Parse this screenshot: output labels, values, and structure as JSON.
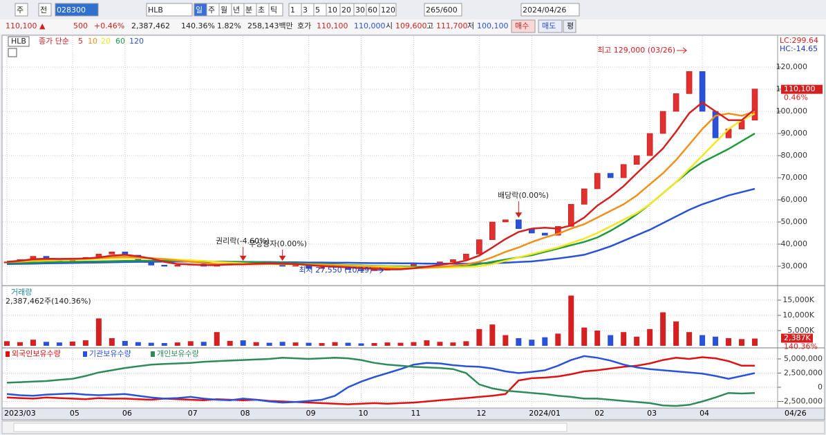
{
  "toolbar": {
    "row1": [
      "주",
      "전",
      "028300",
      "HLB",
      "일",
      "주",
      "월",
      "년",
      "분",
      "초",
      "틱",
      "1",
      "3",
      "5",
      "10",
      "20",
      "30",
      "60",
      "120",
      "265/600",
      "2024/04/26"
    ],
    "row2": [
      "110,100 ▲",
      "500",
      "+0.46%",
      "2,387,462",
      "140.36%",
      "1.82%",
      "258,143백만",
      "호가",
      "110,100",
      "110,000",
      "시",
      "109,600",
      "고",
      "111,700",
      "저",
      "100,100",
      "매수",
      "매도",
      "평"
    ]
  },
  "chart_data": [
    {
      "type": "candlestick",
      "title": "HLB",
      "subtitle": "종가 단순",
      "categories": [
        "2023/03",
        null,
        null,
        null,
        null,
        "05",
        null,
        null,
        null,
        "06",
        null,
        null,
        null,
        null,
        "07",
        null,
        null,
        null,
        "08",
        null,
        null,
        null,
        null,
        "09",
        null,
        null,
        null,
        "10",
        null,
        null,
        null,
        "11",
        null,
        null,
        null,
        null,
        "12",
        null,
        null,
        null,
        "2024/01",
        null,
        null,
        null,
        null,
        "02",
        null,
        null,
        null,
        "03",
        null,
        null,
        null,
        "04",
        null,
        null,
        null,
        null
      ],
      "last_date_label": "04/26",
      "open": [
        31500,
        32000,
        33000,
        34500,
        33500,
        32500,
        33000,
        34000,
        35500,
        36500,
        35000,
        32000,
        30500,
        30000,
        30500,
        31000,
        30000,
        30500,
        31500,
        31000,
        32000,
        31500,
        30000,
        30500,
        29000,
        29500,
        30000,
        28500,
        28000,
        28500,
        28500,
        29500,
        31000,
        31500,
        32000,
        33000,
        35500,
        42000,
        50000,
        51000,
        47000,
        45000,
        44000,
        48000,
        58000,
        65000,
        72000,
        70000,
        76000,
        80000,
        90000,
        100000,
        108000,
        118000,
        100000,
        88000,
        92000,
        96000
      ],
      "close": [
        32000,
        33000,
        34500,
        33500,
        32500,
        33000,
        34000,
        35500,
        36500,
        35000,
        32000,
        30500,
        30000,
        30500,
        31000,
        30000,
        30500,
        31500,
        31000,
        32000,
        31500,
        30000,
        30500,
        29000,
        29500,
        30000,
        28500,
        28000,
        28500,
        28500,
        29500,
        31000,
        31500,
        32000,
        33000,
        35500,
        42000,
        50000,
        51000,
        47000,
        45000,
        44000,
        48000,
        58000,
        65000,
        72000,
        70000,
        76000,
        80000,
        90000,
        100000,
        108000,
        118000,
        100000,
        88000,
        92000,
        96000,
        110100
      ],
      "series": [
        {
          "name": "5",
          "color": "#d42020",
          "values": [
            32000,
            32500,
            33200,
            33400,
            33300,
            33400,
            33500,
            34000,
            34800,
            35200,
            34500,
            33500,
            32000,
            31000,
            30800,
            30500,
            30500,
            30800,
            30900,
            31200,
            31300,
            31200,
            31000,
            30500,
            30100,
            29800,
            29500,
            29100,
            28900,
            28600,
            28600,
            29100,
            29800,
            30600,
            31400,
            32600,
            34800,
            38500,
            42300,
            45500,
            47000,
            47400,
            47000,
            48400,
            52000,
            57400,
            61400,
            66200,
            72000,
            77600,
            83200,
            90800,
            99200,
            104000,
            100000,
            96000,
            96000,
            101000
          ]
        },
        {
          "name": "10",
          "color": "#f0901a",
          "values": [
            32000,
            32300,
            32800,
            33000,
            33100,
            33200,
            33400,
            33700,
            34100,
            34300,
            34000,
            33700,
            33200,
            32600,
            32000,
            31500,
            31000,
            30800,
            30800,
            30900,
            31000,
            31000,
            31000,
            30700,
            30500,
            30400,
            30100,
            29800,
            29500,
            29200,
            29000,
            29100,
            29300,
            29700,
            30200,
            30900,
            32000,
            34100,
            36500,
            38500,
            40900,
            43000,
            44700,
            47000,
            49000,
            52000,
            55000,
            58000,
            62000,
            67000,
            72000,
            78000,
            85000,
            92000,
            98000,
            99000,
            98000,
            100000
          ]
        },
        {
          "name": "20",
          "color": "#f5e620",
          "values": [
            32000,
            32100,
            32400,
            32600,
            32800,
            33000,
            33100,
            33300,
            33500,
            33600,
            33600,
            33500,
            33300,
            33000,
            32700,
            32400,
            32000,
            31600,
            31300,
            31100,
            31000,
            30900,
            30900,
            30800,
            30700,
            30600,
            30400,
            30200,
            30000,
            29800,
            29600,
            29400,
            29300,
            29400,
            29500,
            29700,
            30000,
            31000,
            32500,
            34000,
            35500,
            37000,
            38500,
            40500,
            42500,
            45000,
            48000,
            51000,
            54000,
            58000,
            63000,
            68000,
            74000,
            80000,
            86000,
            92000,
            96000,
            99000
          ]
        },
        {
          "name": "60",
          "color": "#1e9a3c",
          "values": [
            31500,
            31600,
            31700,
            31800,
            31900,
            32000,
            32100,
            32200,
            32300,
            32400,
            32500,
            32500,
            32500,
            32400,
            32300,
            32200,
            32100,
            32000,
            31900,
            31800,
            31700,
            31600,
            31400,
            31200,
            31000,
            30800,
            30600,
            30400,
            30200,
            30000,
            29900,
            29800,
            29800,
            29800,
            29900,
            30000,
            31000,
            32000,
            33000,
            34000,
            35000,
            36500,
            38000,
            39500,
            41000,
            43000,
            46000,
            49500,
            53500,
            58000,
            63000,
            68000,
            73000,
            77000,
            80000,
            83000,
            86500,
            90000
          ]
        },
        {
          "name": "120",
          "color": "#2a52d8",
          "values": [
            31000,
            31100,
            31200,
            31300,
            31400,
            31500,
            31600,
            31700,
            31800,
            31900,
            32000,
            32000,
            32100,
            32100,
            32100,
            32100,
            32100,
            32000,
            32000,
            31900,
            31900,
            31800,
            31800,
            31700,
            31700,
            31600,
            31600,
            31500,
            31400,
            31400,
            31300,
            31300,
            31200,
            31200,
            31200,
            31200,
            31300,
            31400,
            31600,
            31900,
            32200,
            32800,
            33500,
            34300,
            35200,
            37000,
            39000,
            41500,
            44000,
            46500,
            49500,
            52500,
            55500,
            58000,
            60000,
            62000,
            63500,
            65000
          ]
        }
      ],
      "ylim": [
        21560,
        134060
      ],
      "yticks": [
        {
          "value": 30000,
          "label": "30,000"
        },
        {
          "value": 40000,
          "label": "40,000"
        },
        {
          "value": 50000,
          "label": "50,000"
        },
        {
          "value": 60000,
          "label": "60,000"
        },
        {
          "value": 70000,
          "label": "70,000"
        },
        {
          "value": 80000,
          "label": "80,000"
        },
        {
          "value": 90000,
          "label": "90,000"
        },
        {
          "value": 100000,
          "label": "100,000"
        },
        {
          "value": 110000,
          "label": "110,000"
        },
        {
          "value": 120000,
          "label": "120,000"
        }
      ],
      "annotations": {
        "high": "최고 129,000 (03/26)",
        "low": "최저 27,550 (10/19)",
        "events": [
          "권리락(-4.60%)",
          "무상증자(0.00%)",
          "배당락(0.00%)"
        ]
      },
      "right_labels": {
        "lc": "LC:299.64",
        "hc": "HC:-14.65",
        "price": "110,100",
        "change": "0.46%"
      }
    },
    {
      "type": "bar",
      "title": "거래량",
      "subtitle": "2,387,462주(140.36%)",
      "values": [
        1500,
        1200,
        2000,
        1300,
        1100,
        1400,
        1800,
        9000,
        2500,
        1600,
        1200,
        1000,
        900,
        1100,
        1500,
        1300,
        4500,
        1600,
        1800,
        1200,
        1000,
        1300,
        1100,
        1000,
        900,
        1200,
        1000,
        800,
        900,
        1100,
        1000,
        1200,
        1800,
        1300,
        1100,
        1500,
        5500,
        7000,
        3500,
        2500,
        2000,
        2800,
        4000,
        16500,
        6000,
        5000,
        3500,
        4500,
        3000,
        5500,
        11000,
        8000,
        4500,
        3500,
        3000,
        2500,
        2200,
        2387
      ],
      "up_color": "#d42020",
      "down_color": "#2a52d8",
      "ylim": [
        0,
        19090
      ],
      "yticks": [
        {
          "value": 5000,
          "label": "5,000K"
        },
        {
          "value": 10000,
          "label": "10,000K"
        },
        {
          "value": 15000,
          "label": "15,000K"
        }
      ],
      "right_labels": {
        "volume": "2,387K",
        "ratio": "140.36%"
      }
    },
    {
      "type": "line",
      "series": [
        {
          "name": "외국인보유수량",
          "color": "#e01010",
          "values": [
            -1800000,
            -1900000,
            -2000000,
            -1800000,
            -1900000,
            -2000000,
            -2100000,
            -1900000,
            -2000000,
            -2000000,
            -2100000,
            -2200000,
            -2000000,
            -2100000,
            -2200000,
            -2300000,
            -2100000,
            -2200000,
            -2300000,
            -2200000,
            -2400000,
            -2500000,
            -2600000,
            -2700000,
            -2800000,
            -2900000,
            -3000000,
            -2900000,
            -2800000,
            -2900000,
            -2800000,
            -2700000,
            -2500000,
            -2300000,
            -2100000,
            -1900000,
            -1700000,
            -1500000,
            -1200000,
            1200000,
            1600000,
            1700000,
            1900000,
            2300000,
            2800000,
            3000000,
            3300000,
            3600000,
            3800000,
            4200000,
            4800000,
            5200000,
            5000000,
            5300000,
            5100000,
            4600000,
            3800000,
            3800000
          ]
        },
        {
          "name": "기관보유수량",
          "color": "#2a52d8",
          "values": [
            -1200000,
            -1400000,
            -1500000,
            -1300000,
            -1200000,
            -1100000,
            -1300000,
            -1400000,
            -1300000,
            -1200000,
            -1500000,
            -1800000,
            -2000000,
            -1900000,
            -1700000,
            -2000000,
            -2200000,
            -2300000,
            -2000000,
            -2200000,
            -2500000,
            -2700000,
            -2600000,
            -2400000,
            -2200000,
            -1500000,
            0,
            1000000,
            1800000,
            2500000,
            3200000,
            4000000,
            4300000,
            4200000,
            3900000,
            3700000,
            3600000,
            3300000,
            2800000,
            2500000,
            2700000,
            3000000,
            3800000,
            4800000,
            5500000,
            5200000,
            4700000,
            4000000,
            3500000,
            3200000,
            3000000,
            2800000,
            2600000,
            2400000,
            2000000,
            1500000,
            2000000,
            2500000
          ]
        },
        {
          "name": "개인보유수량",
          "color": "#2e8b57",
          "values": [
            800000,
            900000,
            1000000,
            1100000,
            1300000,
            1500000,
            2000000,
            2600000,
            3000000,
            3400000,
            3700000,
            4000000,
            4100000,
            4200000,
            4300000,
            4500000,
            4600000,
            4700000,
            4800000,
            4900000,
            5000000,
            5200000,
            5100000,
            5000000,
            5100000,
            5200000,
            5100000,
            4800000,
            4300000,
            4000000,
            3800000,
            3600000,
            3500000,
            3400000,
            3200000,
            2500000,
            500000,
            -200000,
            -600000,
            -800000,
            -1000000,
            -1200000,
            -1500000,
            -1700000,
            -2000000,
            -2000000,
            -2200000,
            -2400000,
            -2600000,
            -2800000,
            -3200000,
            -3300000,
            -3100000,
            -2500000,
            -1800000,
            -1000000,
            -1100000,
            -1000000
          ]
        }
      ],
      "ylim": [
        -3660000,
        6580000
      ],
      "yticks": [
        {
          "value": -2500000,
          "label": "-2,500,000"
        },
        0,
        {
          "value": 2500000,
          "label": "2,500,000"
        },
        {
          "value": 5000000,
          "label": "5,000,000"
        }
      ]
    }
  ]
}
